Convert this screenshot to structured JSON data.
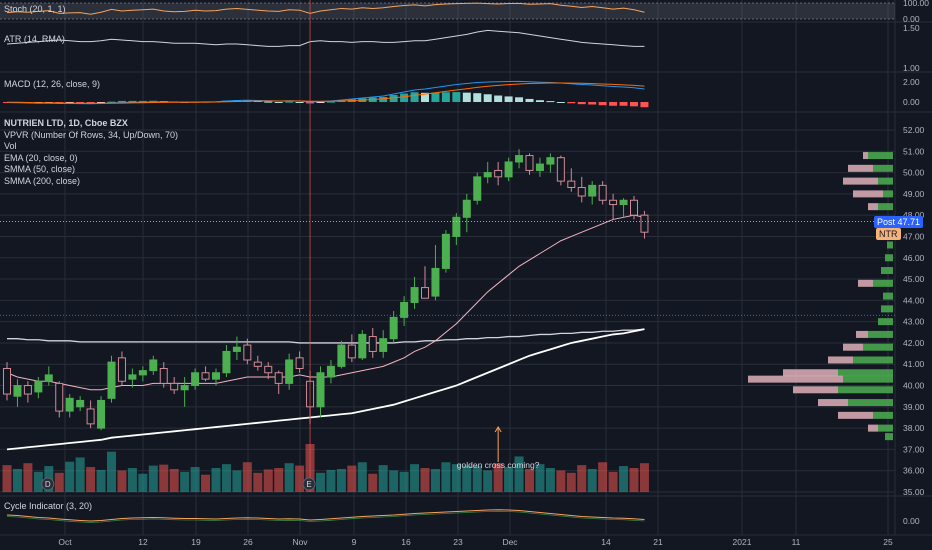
{
  "symbol_line": "NUTRIEN LTD, 1D, Cboe BZX",
  "indicators": {
    "stoch": "Stoch (20, 1, 1)",
    "atr": "ATR (14, RMA)",
    "macd": "MACD (12, 26, close, 9)",
    "vpvr": "VPVR (Number Of Rows, 34, Up/Down, 70)",
    "vol": "Vol",
    "ema": "EMA (20, close, 0)",
    "smma50": "SMMA (50, close)",
    "smma200": "SMMA (200, close)",
    "cycle": "Cycle Indicator (3, 20)"
  },
  "price_tags": {
    "post": "Post",
    "post_value": "47.71",
    "ticker": "NTR"
  },
  "annotation": "golden cross coming?",
  "event_markers": [
    "D",
    "E"
  ],
  "colors": {
    "up": "#26a69a",
    "down": "#ef5350",
    "up_candle": "#4caf50",
    "down_candle": "#d08a95",
    "background": "#131722"
  },
  "axis": {
    "stoch_ticks": [
      "100.00",
      "0.00"
    ],
    "atr_ticks": [
      "1.50",
      "1.00"
    ],
    "macd_ticks": [
      "2.00",
      "0.00"
    ],
    "cycle_ticks": [
      "0.00"
    ],
    "price_ticks": [
      "52.00",
      "51.00",
      "50.00",
      "49.00",
      "48.00",
      "47.00",
      "46.00",
      "45.00",
      "44.00",
      "43.00",
      "42.00",
      "41.00",
      "40.00",
      "39.00",
      "38.00",
      "37.00",
      "36.00",
      "35.00"
    ],
    "x_ticks": [
      "Oct",
      "12",
      "19",
      "26",
      "Nov",
      "9",
      "16",
      "23",
      "Dec",
      "14",
      "21",
      "2021",
      "11",
      "25"
    ]
  },
  "chart_data": {
    "type": "candlestick",
    "price_range": [
      35,
      52.5
    ],
    "candles": [
      [
        40.8,
        41.1,
        39.3,
        39.6
      ],
      [
        39.5,
        40.3,
        39.0,
        40.0
      ],
      [
        40.0,
        40.2,
        39.2,
        39.6
      ],
      [
        39.7,
        40.4,
        39.4,
        40.2
      ],
      [
        40.2,
        40.9,
        40.0,
        40.5
      ],
      [
        40.1,
        40.2,
        38.5,
        38.8
      ],
      [
        38.8,
        39.6,
        38.5,
        39.4
      ],
      [
        39.0,
        39.5,
        38.8,
        39.3
      ],
      [
        38.9,
        39.3,
        38.0,
        38.2
      ],
      [
        38.0,
        39.5,
        37.9,
        39.3
      ],
      [
        39.4,
        41.4,
        39.2,
        41.1
      ],
      [
        41.3,
        41.6,
        40.0,
        40.2
      ],
      [
        40.3,
        40.8,
        39.9,
        40.5
      ],
      [
        40.5,
        40.9,
        40.2,
        40.7
      ],
      [
        40.7,
        41.4,
        40.5,
        41.2
      ],
      [
        40.8,
        41.1,
        39.9,
        40.1
      ],
      [
        40.1,
        40.4,
        39.6,
        39.8
      ],
      [
        39.8,
        40.4,
        39.0,
        40.0
      ],
      [
        40.0,
        40.8,
        39.8,
        40.6
      ],
      [
        40.6,
        40.9,
        40.2,
        40.3
      ],
      [
        40.3,
        40.8,
        40.0,
        40.6
      ],
      [
        40.6,
        41.9,
        40.4,
        41.6
      ],
      [
        41.6,
        42.3,
        41.2,
        41.8
      ],
      [
        41.9,
        42.2,
        41.0,
        41.2
      ],
      [
        41.1,
        41.4,
        40.7,
        40.9
      ],
      [
        40.9,
        41.1,
        40.3,
        40.6
      ],
      [
        40.6,
        40.7,
        39.6,
        40.1
      ],
      [
        40.1,
        41.5,
        39.8,
        41.2
      ],
      [
        41.3,
        41.6,
        40.6,
        40.8
      ],
      [
        40.2,
        40.7,
        38.2,
        39.0
      ],
      [
        39.0,
        40.9,
        38.5,
        40.6
      ],
      [
        40.4,
        41.2,
        40.1,
        40.9
      ],
      [
        40.9,
        42.1,
        40.8,
        41.9
      ],
      [
        41.9,
        42.4,
        41.1,
        41.3
      ],
      [
        41.3,
        42.6,
        41.2,
        42.4
      ],
      [
        42.3,
        42.7,
        41.3,
        41.6
      ],
      [
        41.6,
        42.6,
        41.3,
        42.2
      ],
      [
        42.2,
        43.5,
        42.0,
        43.2
      ],
      [
        43.2,
        44.2,
        42.8,
        43.9
      ],
      [
        43.9,
        45.1,
        43.6,
        44.6
      ],
      [
        44.6,
        45.6,
        44.2,
        44.1
      ],
      [
        44.2,
        46.6,
        44.0,
        45.5
      ],
      [
        45.5,
        47.3,
        45.3,
        47.1
      ],
      [
        47.0,
        48.1,
        46.6,
        47.9
      ],
      [
        47.9,
        49.0,
        47.2,
        48.7
      ],
      [
        48.7,
        50.0,
        48.5,
        49.8
      ],
      [
        49.8,
        50.5,
        49.5,
        50.0
      ],
      [
        50.1,
        50.5,
        49.4,
        49.8
      ],
      [
        49.8,
        50.7,
        49.6,
        50.5
      ],
      [
        50.5,
        51.1,
        50.2,
        50.8
      ],
      [
        50.8,
        50.9,
        49.9,
        50.1
      ],
      [
        50.1,
        50.7,
        49.8,
        50.4
      ],
      [
        50.4,
        50.9,
        50.0,
        50.7
      ],
      [
        50.7,
        50.8,
        49.4,
        49.6
      ],
      [
        49.6,
        50.2,
        49.1,
        49.3
      ],
      [
        49.3,
        49.8,
        48.6,
        48.9
      ],
      [
        48.9,
        49.6,
        48.5,
        49.4
      ],
      [
        49.4,
        49.6,
        48.5,
        48.7
      ],
      [
        48.7,
        49.0,
        47.8,
        48.5
      ],
      [
        48.5,
        48.8,
        47.9,
        48.7
      ],
      [
        48.7,
        48.9,
        47.8,
        48.0
      ],
      [
        48.0,
        48.2,
        46.9,
        47.2
      ]
    ],
    "volume": [
      56,
      48,
      60,
      42,
      54,
      40,
      63,
      72,
      52,
      46,
      84,
      45,
      50,
      38,
      55,
      57,
      48,
      42,
      52,
      36,
      50,
      58,
      45,
      62,
      40,
      47,
      50,
      60,
      55,
      100,
      40,
      46,
      48,
      55,
      62,
      38,
      56,
      45,
      42,
      58,
      50,
      48,
      62,
      58,
      55,
      54,
      45,
      60,
      52,
      74,
      48,
      58,
      50,
      45,
      40,
      56,
      48,
      62,
      42,
      54,
      50,
      60
    ],
    "ema20": [
      40.6,
      40.4,
      40.3,
      40.2,
      40.2,
      40.1,
      40.0,
      39.9,
      39.8,
      39.8,
      39.9,
      40.0,
      40.0,
      40.0,
      40.1,
      40.1,
      40.1,
      40.1,
      40.1,
      40.1,
      40.1,
      40.2,
      40.3,
      40.4,
      40.4,
      40.4,
      40.4,
      40.4,
      40.5,
      40.4,
      40.4,
      40.4,
      40.5,
      40.6,
      40.7,
      40.8,
      40.9,
      41.1,
      41.3,
      41.6,
      41.8,
      42.1,
      42.5,
      42.9,
      43.4,
      43.9,
      44.4,
      44.8,
      45.2,
      45.6,
      45.9,
      46.2,
      46.5,
      46.8,
      47.0,
      47.2,
      47.4,
      47.6,
      47.8,
      47.9,
      48.0,
      47.9
    ],
    "smma50": [
      37.0,
      37.05,
      37.1,
      37.15,
      37.2,
      37.25,
      37.3,
      37.35,
      37.4,
      37.45,
      37.55,
      37.6,
      37.65,
      37.7,
      37.75,
      37.8,
      37.85,
      37.9,
      37.95,
      38.0,
      38.05,
      38.1,
      38.15,
      38.2,
      38.25,
      38.3,
      38.35,
      38.4,
      38.45,
      38.5,
      38.55,
      38.6,
      38.65,
      38.7,
      38.8,
      38.9,
      39.0,
      39.1,
      39.25,
      39.4,
      39.55,
      39.7,
      39.85,
      40.0,
      40.2,
      40.4,
      40.6,
      40.8,
      41.0,
      41.2,
      41.4,
      41.55,
      41.7,
      41.85,
      42.0,
      42.1,
      42.2,
      42.3,
      42.4,
      42.45,
      42.55,
      42.65
    ],
    "smma200": [
      42.2,
      42.2,
      42.15,
      42.15,
      42.1,
      42.1,
      42.1,
      42.05,
      42.05,
      42.05,
      42.05,
      42.05,
      42.05,
      42.05,
      42.05,
      42.05,
      42.05,
      42.05,
      42.05,
      42.05,
      42.05,
      42.05,
      42.05,
      42.05,
      42.05,
      42.05,
      42.05,
      42.05,
      42.0,
      42.0,
      42.0,
      42.0,
      42.0,
      42.0,
      42.0,
      42.0,
      42.0,
      42.0,
      42.05,
      42.05,
      42.1,
      42.1,
      42.15,
      42.15,
      42.2,
      42.2,
      42.25,
      42.25,
      42.3,
      42.3,
      42.35,
      42.4,
      42.4,
      42.45,
      42.45,
      42.5,
      42.5,
      42.55,
      42.55,
      42.6,
      42.6,
      42.65
    ],
    "vpvr": [
      [
        50.8,
        0.25,
        0.05
      ],
      [
        50.2,
        0.2,
        0.25
      ],
      [
        49.6,
        0.15,
        0.35
      ],
      [
        49.0,
        0.1,
        0.3
      ],
      [
        48.4,
        0.15,
        0.1
      ],
      [
        46.6,
        0.06,
        0.0
      ],
      [
        46.0,
        0.08,
        0.0
      ],
      [
        45.4,
        0.12,
        0.0
      ],
      [
        44.8,
        0.2,
        0.15
      ],
      [
        44.2,
        0.1,
        0.0
      ],
      [
        43.6,
        0.12,
        0.0
      ],
      [
        43.0,
        0.15,
        0.0
      ],
      [
        42.4,
        0.25,
        0.12
      ],
      [
        41.8,
        0.3,
        0.2
      ],
      [
        41.2,
        0.4,
        0.25
      ],
      [
        40.6,
        0.55,
        0.55
      ],
      [
        40.3,
        0.5,
        0.95
      ],
      [
        39.8,
        0.55,
        0.45
      ],
      [
        39.2,
        0.45,
        0.3
      ],
      [
        38.6,
        0.2,
        0.35
      ],
      [
        38.0,
        0.15,
        0.1
      ],
      [
        37.6,
        0.08,
        0.0
      ]
    ],
    "macd": [
      -0.05,
      -0.08,
      -0.1,
      -0.12,
      -0.12,
      -0.15,
      -0.15,
      -0.16,
      -0.18,
      -0.15,
      -0.1,
      -0.05,
      -0.03,
      -0.01,
      0.02,
      0.01,
      0.0,
      -0.02,
      0.0,
      0.01,
      0.03,
      0.1,
      0.15,
      0.18,
      0.15,
      0.12,
      0.1,
      0.12,
      0.1,
      0.0,
      0.05,
      0.1,
      0.2,
      0.3,
      0.4,
      0.5,
      0.6,
      0.8,
      1.0,
      1.2,
      1.3,
      1.45,
      1.6,
      1.75,
      1.85,
      1.95,
      2.0,
      2.02,
      2.05,
      2.06,
      2.02,
      1.98,
      1.95,
      1.9,
      1.82,
      1.75,
      1.7,
      1.62,
      1.55,
      1.5,
      1.42,
      1.3
    ],
    "macd_signal": [
      -0.02,
      -0.03,
      -0.05,
      -0.07,
      -0.08,
      -0.1,
      -0.11,
      -0.12,
      -0.13,
      -0.13,
      -0.12,
      -0.11,
      -0.09,
      -0.07,
      -0.05,
      -0.04,
      -0.03,
      -0.03,
      -0.02,
      -0.01,
      0.0,
      0.02,
      0.05,
      0.07,
      0.09,
      0.1,
      0.1,
      0.1,
      0.1,
      0.08,
      0.08,
      0.08,
      0.1,
      0.14,
      0.19,
      0.25,
      0.32,
      0.41,
      0.53,
      0.66,
      0.79,
      0.92,
      1.06,
      1.2,
      1.33,
      1.46,
      1.57,
      1.66,
      1.74,
      1.8,
      1.85,
      1.88,
      1.9,
      1.9,
      1.89,
      1.87,
      1.84,
      1.8,
      1.76,
      1.71,
      1.66,
      1.59
    ],
    "atr": [
      1.3,
      1.31,
      1.32,
      1.33,
      1.34,
      1.35,
      1.34,
      1.33,
      1.33,
      1.34,
      1.36,
      1.35,
      1.34,
      1.33,
      1.33,
      1.32,
      1.31,
      1.31,
      1.31,
      1.3,
      1.29,
      1.3,
      1.3,
      1.29,
      1.28,
      1.27,
      1.27,
      1.28,
      1.28,
      1.33,
      1.34,
      1.33,
      1.33,
      1.32,
      1.33,
      1.33,
      1.32,
      1.32,
      1.33,
      1.34,
      1.34,
      1.36,
      1.38,
      1.4,
      1.42,
      1.45,
      1.47,
      1.46,
      1.45,
      1.44,
      1.42,
      1.4,
      1.38,
      1.36,
      1.34,
      1.32,
      1.31,
      1.3,
      1.29,
      1.28,
      1.27,
      1.27
    ],
    "stoch": [
      40,
      45,
      42,
      48,
      52,
      35,
      38,
      40,
      30,
      42,
      60,
      50,
      55,
      58,
      62,
      50,
      45,
      48,
      55,
      50,
      52,
      62,
      66,
      60,
      55,
      50,
      48,
      58,
      55,
      35,
      50,
      58,
      66,
      62,
      70,
      66,
      70,
      78,
      84,
      88,
      82,
      90,
      94,
      96,
      98,
      99,
      96,
      94,
      97,
      98,
      92,
      94,
      96,
      86,
      80,
      72,
      78,
      70,
      62,
      68,
      58,
      42
    ],
    "cycle": [
      0.6,
      0.55,
      0.45,
      0.35,
      0.3,
      0.2,
      0.12,
      0.05,
      0.0,
      0.05,
      0.15,
      0.25,
      0.3,
      0.32,
      0.35,
      0.32,
      0.28,
      0.25,
      0.25,
      0.22,
      0.2,
      0.25,
      0.3,
      0.32,
      0.3,
      0.25,
      0.2,
      0.22,
      0.2,
      0.1,
      0.15,
      0.22,
      0.3,
      0.38,
      0.45,
      0.5,
      0.55,
      0.6,
      0.68,
      0.75,
      0.8,
      0.85,
      0.9,
      0.95,
      1.0,
      1.05,
      1.1,
      1.12,
      1.1,
      1.05,
      0.95,
      0.85,
      0.75,
      0.65,
      0.55,
      0.45,
      0.4,
      0.35,
      0.3,
      0.28,
      0.22,
      0.15
    ]
  }
}
